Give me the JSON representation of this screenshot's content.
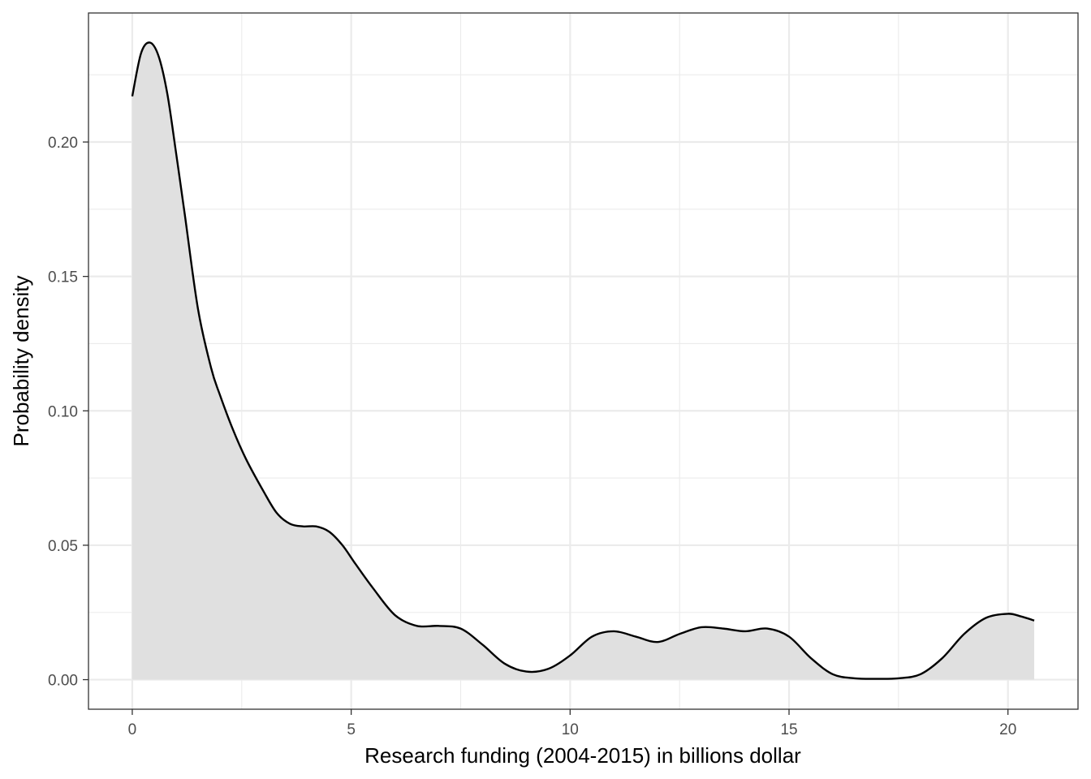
{
  "chart_data": {
    "type": "area",
    "xlabel": "Research funding (2004-2015) in billions dollar",
    "ylabel": "Probability density",
    "xlim": [
      -1.0,
      21.6
    ],
    "ylim": [
      -0.011,
      0.248
    ],
    "x_ticks": [
      0,
      5,
      10,
      15,
      20
    ],
    "x_tick_labels": [
      "0",
      "5",
      "10",
      "15",
      "20"
    ],
    "x_minor_ticks": [
      2.5,
      7.5,
      12.5,
      17.5
    ],
    "y_ticks": [
      0.0,
      0.05,
      0.1,
      0.15,
      0.2
    ],
    "y_tick_labels": [
      "0.00",
      "0.05",
      "0.10",
      "0.15",
      "0.20"
    ],
    "y_minor_ticks": [
      0.025,
      0.075,
      0.125,
      0.175,
      0.225
    ],
    "grid": true,
    "fill_color": "#e0e0e0",
    "line_color": "#000000",
    "series": [
      {
        "x": [
          0,
          0.2,
          0.4,
          0.6,
          0.8,
          1.0,
          1.2,
          1.5,
          1.8,
          2.0,
          2.3,
          2.6,
          3.0,
          3.3,
          3.6,
          3.9,
          4.2,
          4.5,
          4.8,
          5.1,
          5.5,
          6.0,
          6.5,
          7.0,
          7.5,
          8.0,
          8.5,
          9.0,
          9.5,
          10.0,
          10.5,
          11.0,
          11.5,
          12.0,
          12.5,
          13.0,
          13.5,
          14.0,
          14.5,
          15.0,
          15.5,
          16.0,
          16.5,
          17.0,
          17.5,
          18.0,
          18.5,
          19.0,
          19.5,
          20.0,
          20.3,
          20.6
        ],
        "y": [
          0.217,
          0.233,
          0.237,
          0.232,
          0.218,
          0.196,
          0.173,
          0.138,
          0.116,
          0.106,
          0.093,
          0.082,
          0.07,
          0.062,
          0.058,
          0.057,
          0.057,
          0.055,
          0.05,
          0.043,
          0.034,
          0.024,
          0.02,
          0.02,
          0.019,
          0.013,
          0.006,
          0.003,
          0.004,
          0.009,
          0.016,
          0.018,
          0.016,
          0.014,
          0.017,
          0.0195,
          0.019,
          0.018,
          0.019,
          0.016,
          0.008,
          0.002,
          0.0005,
          0.0003,
          0.0005,
          0.002,
          0.008,
          0.017,
          0.023,
          0.0245,
          0.0235,
          0.022
        ]
      }
    ]
  }
}
